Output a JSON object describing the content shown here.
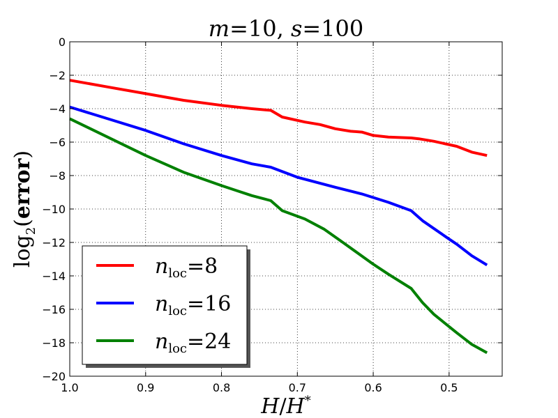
{
  "chart_data": {
    "type": "line",
    "title": {
      "m_sym": "m",
      "eq1": "=10, ",
      "s_sym": "s",
      "eq2": "=100"
    },
    "xlabel": {
      "h1": "H",
      "slash": "/",
      "h2": "H",
      "star": "*"
    },
    "ylabel": {
      "log": "log",
      "sub": "2",
      "open": "(",
      "bold": "error",
      "close": ")"
    },
    "x_reversed": true,
    "xlim": [
      1.0,
      0.43
    ],
    "ylim": [
      -20,
      0
    ],
    "xticks": [
      1.0,
      0.9,
      0.8,
      0.7,
      0.6,
      0.5
    ],
    "xtick_labels": [
      "1.0",
      "0.9",
      "0.8",
      "0.7",
      "0.6",
      "0.5"
    ],
    "yticks": [
      0,
      -2,
      -4,
      -6,
      -8,
      -10,
      -12,
      -14,
      -16,
      -18,
      -20
    ],
    "ytick_labels": [
      "0",
      "−2",
      "−4",
      "−6",
      "−8",
      "−10",
      "−12",
      "−14",
      "−16",
      "−18",
      "−20"
    ],
    "grid": true,
    "legend_position": "bottom-left",
    "series": [
      {
        "name": "n_loc=8",
        "legend": {
          "n": "n",
          "sub": "loc",
          "eq": "=8"
        },
        "color": "#ff0000",
        "x": [
          1.0,
          0.95,
          0.9,
          0.85,
          0.8,
          0.76,
          0.735,
          0.72,
          0.69,
          0.67,
          0.65,
          0.63,
          0.615,
          0.6,
          0.58,
          0.55,
          0.54,
          0.52,
          0.49,
          0.47,
          0.45
        ],
        "y": [
          -2.3,
          -2.7,
          -3.1,
          -3.5,
          -3.8,
          -4.0,
          -4.1,
          -4.5,
          -4.8,
          -4.95,
          -5.2,
          -5.35,
          -5.4,
          -5.6,
          -5.7,
          -5.75,
          -5.8,
          -5.95,
          -6.25,
          -6.6,
          -6.8
        ]
      },
      {
        "name": "n_loc=16",
        "legend": {
          "n": "n",
          "sub": "loc",
          "eq": "=16"
        },
        "color": "#0000ff",
        "x": [
          1.0,
          0.95,
          0.9,
          0.85,
          0.8,
          0.76,
          0.735,
          0.7,
          0.65,
          0.615,
          0.58,
          0.55,
          0.535,
          0.5,
          0.49,
          0.47,
          0.45
        ],
        "y": [
          -3.9,
          -4.6,
          -5.3,
          -6.1,
          -6.8,
          -7.3,
          -7.5,
          -8.1,
          -8.7,
          -9.1,
          -9.6,
          -10.1,
          -10.7,
          -11.8,
          -12.1,
          -12.8,
          -13.35
        ]
      },
      {
        "name": "n_loc=24",
        "legend": {
          "n": "n",
          "sub": "loc",
          "eq": "=24"
        },
        "color": "#008000",
        "x": [
          1.0,
          0.95,
          0.9,
          0.85,
          0.8,
          0.78,
          0.76,
          0.735,
          0.72,
          0.69,
          0.665,
          0.64,
          0.6,
          0.58,
          0.55,
          0.535,
          0.52,
          0.49,
          0.47,
          0.45
        ],
        "y": [
          -4.6,
          -5.7,
          -6.8,
          -7.8,
          -8.6,
          -8.9,
          -9.2,
          -9.5,
          -10.1,
          -10.6,
          -11.2,
          -12.0,
          -13.3,
          -13.9,
          -14.75,
          -15.6,
          -16.3,
          -17.4,
          -18.1,
          -18.6
        ]
      }
    ]
  }
}
